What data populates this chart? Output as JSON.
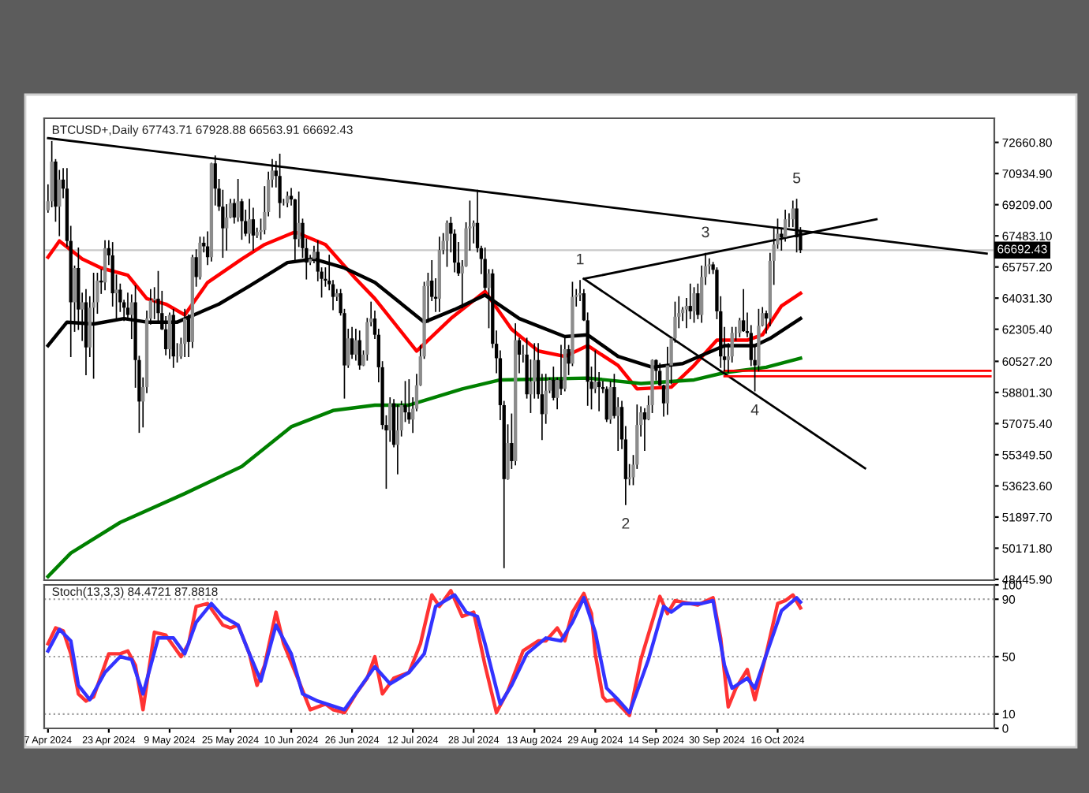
{
  "chart_data": [
    {
      "type": "candlestick",
      "title": "BTCUSD+,Daily 67743.71 67928.88 66563.91 66692.43",
      "x": [
        "2024-04-07",
        "2024-04-08",
        "2024-04-09",
        "2024-04-10",
        "2024-04-11",
        "2024-04-12",
        "2024-04-13",
        "2024-04-14",
        "2024-04-15",
        "2024-04-16",
        "2024-04-17",
        "2024-04-18",
        "2024-04-19",
        "2024-04-20",
        "2024-04-21",
        "2024-04-22",
        "2024-04-23",
        "2024-04-24",
        "2024-04-25",
        "2024-04-26",
        "2024-04-27",
        "2024-04-28",
        "2024-04-29",
        "2024-04-30",
        "2024-05-01",
        "2024-05-02",
        "2024-05-03",
        "2024-05-04",
        "2024-05-05",
        "2024-05-06",
        "2024-05-07",
        "2024-05-08",
        "2024-05-09",
        "2024-05-10",
        "2024-05-11",
        "2024-05-12",
        "2024-05-13",
        "2024-05-14",
        "2024-05-15",
        "2024-05-16",
        "2024-05-17",
        "2024-05-18",
        "2024-05-19",
        "2024-05-20",
        "2024-05-21",
        "2024-05-22",
        "2024-05-23",
        "2024-05-24",
        "2024-05-25",
        "2024-05-26",
        "2024-05-27",
        "2024-05-28",
        "2024-05-29",
        "2024-05-30",
        "2024-05-31",
        "2024-06-01",
        "2024-06-02",
        "2024-06-03",
        "2024-06-04",
        "2024-06-05",
        "2024-06-06",
        "2024-06-07",
        "2024-06-08",
        "2024-06-09",
        "2024-06-10",
        "2024-06-11",
        "2024-06-12",
        "2024-06-13",
        "2024-06-14",
        "2024-06-15",
        "2024-06-16",
        "2024-06-17",
        "2024-06-18",
        "2024-06-19",
        "2024-06-20",
        "2024-06-21",
        "2024-06-22",
        "2024-06-23",
        "2024-06-24",
        "2024-06-25",
        "2024-06-26",
        "2024-06-27",
        "2024-06-28",
        "2024-06-29",
        "2024-06-30",
        "2024-07-01",
        "2024-07-02",
        "2024-07-03",
        "2024-07-04",
        "2024-07-05",
        "2024-07-06",
        "2024-07-07",
        "2024-07-08",
        "2024-07-09",
        "2024-07-10",
        "2024-07-11",
        "2024-07-12",
        "2024-07-13",
        "2024-07-14",
        "2024-07-15",
        "2024-07-16",
        "2024-07-17",
        "2024-07-18",
        "2024-07-19",
        "2024-07-20",
        "2024-07-21",
        "2024-07-22",
        "2024-07-23",
        "2024-07-24",
        "2024-07-25",
        "2024-07-26",
        "2024-07-27",
        "2024-07-28",
        "2024-07-29",
        "2024-07-30",
        "2024-07-31",
        "2024-08-01",
        "2024-08-02",
        "2024-08-03",
        "2024-08-04",
        "2024-08-05",
        "2024-08-06",
        "2024-08-07",
        "2024-08-08",
        "2024-08-09",
        "2024-08-10",
        "2024-08-11",
        "2024-08-12",
        "2024-08-13",
        "2024-08-14",
        "2024-08-15",
        "2024-08-16",
        "2024-08-17",
        "2024-08-18",
        "2024-08-19",
        "2024-08-20",
        "2024-08-21",
        "2024-08-22",
        "2024-08-23",
        "2024-08-24",
        "2024-08-25",
        "2024-08-26",
        "2024-08-27",
        "2024-08-28",
        "2024-08-29",
        "2024-08-30",
        "2024-08-31",
        "2024-09-01",
        "2024-09-02",
        "2024-09-03",
        "2024-09-04",
        "2024-09-05",
        "2024-09-06",
        "2024-09-07",
        "2024-09-08",
        "2024-09-09",
        "2024-09-10",
        "2024-09-11",
        "2024-09-12",
        "2024-09-13",
        "2024-09-14",
        "2024-09-15",
        "2024-09-16",
        "2024-09-17",
        "2024-09-18",
        "2024-09-19",
        "2024-09-20",
        "2024-09-21",
        "2024-09-22",
        "2024-09-23",
        "2024-09-24",
        "2024-09-25",
        "2024-09-26",
        "2024-09-27",
        "2024-09-28",
        "2024-09-29",
        "2024-09-30",
        "2024-10-01",
        "2024-10-02",
        "2024-10-03",
        "2024-10-04",
        "2024-10-05",
        "2024-10-06",
        "2024-10-07",
        "2024-10-08",
        "2024-10-09",
        "2024-10-10",
        "2024-10-11",
        "2024-10-12",
        "2024-10-13",
        "2024-10-14",
        "2024-10-15",
        "2024-10-16",
        "2024-10-17",
        "2024-10-18",
        "2024-10-19",
        "2024-10-20",
        "2024-10-21",
        "2024-10-22"
      ],
      "ohlc": [
        [
          68900,
          70300,
          68800,
          69400
        ],
        [
          69400,
          72700,
          69100,
          71600
        ],
        [
          71600,
          71700,
          68300,
          69100
        ],
        [
          69100,
          71100,
          67500,
          70600
        ],
        [
          70600,
          71200,
          69600,
          70100
        ],
        [
          70100,
          71200,
          66900,
          67200
        ],
        [
          67200,
          68000,
          60800,
          63800
        ],
        [
          63800,
          65800,
          62200,
          65700
        ],
        [
          65700,
          66800,
          62300,
          63400
        ],
        [
          63400,
          64300,
          61700,
          63800
        ],
        [
          63800,
          64500,
          59800,
          61300
        ],
        [
          61300,
          64100,
          60800,
          63500
        ],
        [
          63500,
          65400,
          59600,
          63800
        ],
        [
          63800,
          65400,
          63200,
          65000
        ],
        [
          65000,
          65600,
          64300,
          64900
        ],
        [
          64900,
          67200,
          64500,
          66800
        ],
        [
          66800,
          67200,
          65900,
          66400
        ],
        [
          66400,
          67100,
          63600,
          64300
        ],
        [
          64300,
          65300,
          62800,
          64500
        ],
        [
          64500,
          64800,
          63300,
          63800
        ],
        [
          63800,
          63900,
          62800,
          63500
        ],
        [
          63500,
          64300,
          62900,
          63100
        ],
        [
          63100,
          64200,
          61800,
          63800
        ],
        [
          63800,
          64700,
          59100,
          60600
        ],
        [
          60600,
          60800,
          56600,
          58300
        ],
        [
          58300,
          59600,
          56900,
          59100
        ],
        [
          59100,
          63300,
          58800,
          62900
        ],
        [
          62900,
          64500,
          62600,
          63900
        ],
        [
          63900,
          64600,
          62900,
          64000
        ],
        [
          64000,
          65500,
          62700,
          63200
        ],
        [
          63200,
          64400,
          62300,
          62300
        ],
        [
          62300,
          63000,
          60900,
          61200
        ],
        [
          61200,
          63200,
          60700,
          63100
        ],
        [
          63100,
          63400,
          60200,
          60800
        ],
        [
          60800,
          61500,
          60500,
          60800
        ],
        [
          60800,
          61800,
          60700,
          61500
        ],
        [
          61500,
          63400,
          60800,
          62900
        ],
        [
          62900,
          63100,
          60800,
          61600
        ],
        [
          61600,
          66400,
          61300,
          66300
        ],
        [
          66300,
          66700,
          64700,
          65200
        ],
        [
          65200,
          67400,
          65100,
          67100
        ],
        [
          67100,
          67400,
          66600,
          66900
        ],
        [
          66900,
          67700,
          65900,
          66300
        ],
        [
          66300,
          71500,
          66100,
          71500
        ],
        [
          71500,
          71900,
          69200,
          70100
        ],
        [
          70100,
          70600,
          68900,
          69100
        ],
        [
          69100,
          70000,
          66300,
          67900
        ],
        [
          67900,
          69200,
          66700,
          68500
        ],
        [
          68500,
          69500,
          68500,
          69300
        ],
        [
          69300,
          69500,
          68200,
          68500
        ],
        [
          68500,
          70600,
          68300,
          69400
        ],
        [
          69400,
          69500,
          67300,
          68300
        ],
        [
          68300,
          68900,
          67500,
          67600
        ],
        [
          67600,
          69500,
          67100,
          68400
        ],
        [
          68400,
          69000,
          66700,
          67500
        ],
        [
          67500,
          67900,
          67400,
          67700
        ],
        [
          67700,
          68400,
          67300,
          67800
        ],
        [
          67800,
          70200,
          67600,
          68800
        ],
        [
          68800,
          71000,
          68600,
          70600
        ],
        [
          70600,
          71700,
          70200,
          71100
        ],
        [
          71100,
          71600,
          70200,
          70800
        ],
        [
          70800,
          72000,
          68500,
          69300
        ],
        [
          69300,
          69500,
          69200,
          69300
        ],
        [
          69300,
          69900,
          69100,
          69700
        ],
        [
          69700,
          70100,
          69200,
          69500
        ],
        [
          69500,
          69500,
          66100,
          67300
        ],
        [
          67300,
          69900,
          66900,
          68200
        ],
        [
          68200,
          68400,
          66300,
          66800
        ],
        [
          66800,
          67300,
          65100,
          66000
        ],
        [
          66000,
          66400,
          65900,
          66200
        ],
        [
          66200,
          66900,
          66000,
          66600
        ],
        [
          66600,
          67200,
          65000,
          65500
        ],
        [
          65500,
          65700,
          64100,
          65100
        ],
        [
          65100,
          65700,
          64700,
          65000
        ],
        [
          65000,
          66400,
          64500,
          64800
        ],
        [
          64800,
          65000,
          63400,
          64100
        ],
        [
          64100,
          64500,
          63900,
          64300
        ],
        [
          64300,
          64500,
          63100,
          63200
        ],
        [
          63200,
          63400,
          58500,
          60300
        ],
        [
          60300,
          62300,
          60200,
          61800
        ],
        [
          61800,
          62400,
          60700,
          60900
        ],
        [
          60900,
          62300,
          60600,
          61700
        ],
        [
          61700,
          62200,
          60100,
          60300
        ],
        [
          60300,
          61100,
          60300,
          60900
        ],
        [
          60900,
          62900,
          60600,
          62700
        ],
        [
          62700,
          63800,
          62500,
          62900
        ],
        [
          62900,
          63300,
          61800,
          62000
        ],
        [
          62000,
          62300,
          59400,
          60200
        ],
        [
          60200,
          60500,
          56800,
          57000
        ],
        [
          57000,
          57500,
          53500,
          56700
        ],
        [
          56700,
          58500,
          56100,
          58200
        ],
        [
          58200,
          58400,
          55800,
          55900
        ],
        [
          55900,
          58100,
          54300,
          56700
        ],
        [
          56700,
          58300,
          56400,
          58100
        ],
        [
          58100,
          59400,
          57200,
          57700
        ],
        [
          57700,
          59500,
          57100,
          57300
        ],
        [
          57300,
          58500,
          56600,
          57900
        ],
        [
          57900,
          59800,
          57800,
          59200
        ],
        [
          59200,
          61400,
          59200,
          60800
        ],
        [
          60800,
          64900,
          60700,
          64700
        ],
        [
          64700,
          65400,
          62700,
          65000
        ],
        [
          65000,
          66100,
          63900,
          64100
        ],
        [
          64100,
          65100,
          63300,
          64000
        ],
        [
          64000,
          67400,
          63300,
          66700
        ],
        [
          66700,
          67600,
          66500,
          67200
        ],
        [
          67200,
          68300,
          65800,
          68200
        ],
        [
          68200,
          68500,
          66600,
          67600
        ],
        [
          67600,
          67800,
          65500,
          66000
        ],
        [
          66000,
          67100,
          65300,
          65400
        ],
        [
          65400,
          66100,
          63500,
          65800
        ],
        [
          65800,
          68200,
          65800,
          67900
        ],
        [
          67900,
          69400,
          66700,
          68000
        ],
        [
          68000,
          68300,
          67100,
          68200
        ],
        [
          68200,
          70000,
          66600,
          66800
        ],
        [
          66800,
          66900,
          65400,
          66200
        ],
        [
          66200,
          66800,
          64500,
          64600
        ],
        [
          64600,
          65600,
          62400,
          65400
        ],
        [
          65400,
          65600,
          61300,
          61500
        ],
        [
          61500,
          62200,
          59900,
          60700
        ],
        [
          60700,
          61100,
          57300,
          58100
        ],
        [
          58100,
          58300,
          49100,
          54000
        ],
        [
          54000,
          57000,
          54000,
          56000
        ],
        [
          56000,
          57600,
          54600,
          55000
        ],
        [
          55000,
          62600,
          54800,
          61700
        ],
        [
          61700,
          61800,
          59900,
          60900
        ],
        [
          60900,
          61400,
          60500,
          60900
        ],
        [
          60900,
          61800,
          58500,
          58700
        ],
        [
          58700,
          60600,
          57700,
          59400
        ],
        [
          59400,
          61500,
          58500,
          60600
        ],
        [
          60600,
          61500,
          58500,
          58700
        ],
        [
          58700,
          59800,
          56200,
          57600
        ],
        [
          57600,
          59800,
          57100,
          58900
        ],
        [
          58900,
          59600,
          58800,
          59500
        ],
        [
          59500,
          60200,
          58400,
          58500
        ],
        [
          58500,
          59600,
          57900,
          59500
        ],
        [
          59500,
          61400,
          58700,
          59000
        ],
        [
          59000,
          61800,
          58900,
          61200
        ],
        [
          61200,
          61400,
          59800,
          60400
        ],
        [
          60400,
          64900,
          60300,
          64100
        ],
        [
          64100,
          64500,
          63600,
          64200
        ],
        [
          64200,
          65000,
          63900,
          64300
        ],
        [
          64300,
          64500,
          62800,
          62800
        ],
        [
          62800,
          63200,
          58100,
          59400
        ],
        [
          59400,
          60200,
          57900,
          59000
        ],
        [
          59000,
          61100,
          58800,
          59400
        ],
        [
          59400,
          59900,
          57800,
          59100
        ],
        [
          59100,
          59400,
          58800,
          59000
        ],
        [
          59000,
          59100,
          57200,
          57300
        ],
        [
          57300,
          59400,
          57100,
          59100
        ],
        [
          59100,
          59800,
          57400,
          57500
        ],
        [
          57500,
          58500,
          55600,
          58000
        ],
        [
          58000,
          58300,
          55700,
          56200
        ],
        [
          56200,
          56900,
          52600,
          54000
        ],
        [
          54000,
          54800,
          53700,
          54100
        ],
        [
          54100,
          55300,
          53700,
          54800
        ],
        [
          54800,
          58100,
          54600,
          57000
        ],
        [
          57000,
          58000,
          56400,
          57700
        ],
        [
          57700,
          57900,
          55600,
          57300
        ],
        [
          57300,
          58600,
          57300,
          58100
        ],
        [
          58100,
          60600,
          57700,
          60600
        ],
        [
          60600,
          60600,
          59500,
          60000
        ],
        [
          60000,
          60400,
          59200,
          59200
        ],
        [
          59200,
          59200,
          57500,
          58200
        ],
        [
          58200,
          61300,
          57600,
          60300
        ],
        [
          60300,
          61800,
          59300,
          61800
        ],
        [
          61800,
          63800,
          61600,
          63000
        ],
        [
          63000,
          64100,
          62400,
          63200
        ],
        [
          63200,
          63500,
          62800,
          63400
        ],
        [
          63400,
          64000,
          62400,
          63600
        ],
        [
          63600,
          64800,
          62900,
          63300
        ],
        [
          63300,
          64600,
          62700,
          64300
        ],
        [
          64300,
          64800,
          62900,
          63100
        ],
        [
          63100,
          65800,
          62700,
          65200
        ],
        [
          65200,
          66500,
          64800,
          65800
        ],
        [
          65800,
          66200,
          65400,
          65900
        ],
        [
          65900,
          66000,
          65400,
          65600
        ],
        [
          65600,
          65700,
          62900,
          63300
        ],
        [
          63300,
          64100,
          60200,
          60800
        ],
        [
          60800,
          62400,
          60000,
          60600
        ],
        [
          60600,
          61500,
          59900,
          60800
        ],
        [
          60800,
          62400,
          60500,
          62100
        ],
        [
          62100,
          62400,
          61700,
          62100
        ],
        [
          62100,
          62900,
          61900,
          62800
        ],
        [
          62800,
          64500,
          62200,
          62200
        ],
        [
          62200,
          63200,
          61900,
          62100
        ],
        [
          62100,
          62500,
          60300,
          60600
        ],
        [
          60600,
          61300,
          58900,
          60300
        ],
        [
          60300,
          63400,
          60000,
          62500
        ],
        [
          62500,
          63500,
          62500,
          63200
        ],
        [
          63200,
          63300,
          62100,
          62900
        ],
        [
          62900,
          66500,
          62500,
          66100
        ],
        [
          66100,
          67900,
          64800,
          67000
        ],
        [
          67000,
          68400,
          66800,
          67600
        ],
        [
          67600,
          67900,
          66700,
          67400
        ],
        [
          67400,
          68900,
          67200,
          68400
        ],
        [
          68400,
          68700,
          68000,
          68400
        ],
        [
          68400,
          69400,
          68000,
          69000
        ],
        [
          69000,
          69500,
          66600,
          67400
        ],
        [
          67743.71,
          67928.88,
          66563.91,
          66692.43
        ]
      ],
      "series": [
        {
          "type": "line",
          "color": "#ff0000",
          "x": [
            "2024-04-07",
            "2024-04-10",
            "2024-04-16",
            "2024-04-21",
            "2024-04-28",
            "2024-05-03",
            "2024-05-08",
            "2024-05-13",
            "2024-05-19",
            "2024-05-28",
            "2024-06-03",
            "2024-06-11",
            "2024-06-19",
            "2024-06-27",
            "2024-07-02",
            "2024-07-13",
            "2024-07-22",
            "2024-07-31",
            "2024-08-07",
            "2024-08-14",
            "2024-08-21",
            "2024-08-27",
            "2024-09-04",
            "2024-09-09",
            "2024-09-18",
            "2024-09-24",
            "2024-09-30",
            "2024-10-08",
            "2024-10-12",
            "2024-10-17",
            "2024-10-22"
          ],
          "values": [
            66300,
            67200,
            66200,
            65700,
            65300,
            64000,
            63700,
            63100,
            64900,
            66200,
            67000,
            67700,
            67000,
            65100,
            64000,
            61100,
            62900,
            64400,
            62300,
            61100,
            60800,
            61400,
            60300,
            59000,
            59100,
            60300,
            61700,
            61700,
            62000,
            63600,
            64300
          ]
        },
        {
          "type": "line",
          "color": "#000000",
          "x": [
            "2024-04-07",
            "2024-04-12",
            "2024-04-19",
            "2024-04-27",
            "2024-05-03",
            "2024-05-11",
            "2024-05-22",
            "2024-05-30",
            "2024-06-09",
            "2024-06-16",
            "2024-06-24",
            "2024-07-02",
            "2024-07-15",
            "2024-07-23",
            "2024-07-31",
            "2024-08-09",
            "2024-08-21",
            "2024-08-27",
            "2024-09-04",
            "2024-09-13",
            "2024-09-21",
            "2024-10-02",
            "2024-10-10",
            "2024-10-14",
            "2024-10-22"
          ],
          "values": [
            61400,
            62700,
            62600,
            62900,
            62700,
            62700,
            63700,
            64700,
            66000,
            66200,
            65700,
            64900,
            62700,
            63400,
            64200,
            62900,
            61900,
            62000,
            60800,
            60200,
            60400,
            61400,
            61400,
            61800,
            62900
          ]
        },
        {
          "type": "line",
          "color": "#008000",
          "x": [
            "2024-04-07",
            "2024-04-13",
            "2024-04-26",
            "2024-05-13",
            "2024-05-28",
            "2024-06-10",
            "2024-06-21",
            "2024-07-02",
            "2024-07-11",
            "2024-07-25",
            "2024-08-04",
            "2024-08-27",
            "2024-09-10",
            "2024-09-24",
            "2024-10-02",
            "2024-10-13",
            "2024-10-22"
          ],
          "values": [
            48600,
            49900,
            51600,
            53200,
            54700,
            56900,
            57800,
            58100,
            58100,
            59000,
            59500,
            59600,
            59300,
            59500,
            59900,
            60200,
            60700
          ]
        },
        {
          "type": "line",
          "color": "#000000",
          "x": [
            "2024-04-07",
            "2024-12-10"
          ],
          "values": [
            72900,
            66500
          ]
        },
        {
          "type": "line",
          "color": "#000000",
          "x": [
            "2024-08-26",
            "2024-11-11"
          ],
          "values": [
            65100,
            68400
          ]
        },
        {
          "type": "line",
          "color": "#000000",
          "x": [
            "2024-08-26",
            "2024-11-08"
          ],
          "values": [
            65100,
            54600
          ]
        },
        {
          "type": "line",
          "color": "#ff0000",
          "x": [
            "2024-10-02",
            "2024-12-11"
          ],
          "values": [
            60000,
            60000
          ]
        },
        {
          "type": "line",
          "color": "#ff0000",
          "x": [
            "2024-10-02",
            "2024-12-11"
          ],
          "values": [
            59700,
            59700
          ]
        }
      ],
      "xlim": [
        "2024-04-06",
        "2024-12-12"
      ],
      "ylim": [
        48400,
        74000
      ],
      "yticks": [
        {
          "value": 72660.8,
          "label": "72660.80"
        },
        {
          "value": 70934.9,
          "label": "70934.90"
        },
        {
          "value": 69209.0,
          "label": "69209.00"
        },
        {
          "value": 67483.1,
          "label": "67483.10"
        },
        {
          "value": 65757.2,
          "label": "65757.20"
        },
        {
          "value": 64031.3,
          "label": "64031.30"
        },
        {
          "value": 62305.4,
          "label": "62305.40"
        },
        {
          "value": 60527.2,
          "label": "60527.20"
        },
        {
          "value": 58801.3,
          "label": "58801.30"
        },
        {
          "value": 57075.4,
          "label": "57075.40"
        },
        {
          "value": 55349.5,
          "label": "55349.50"
        },
        {
          "value": 53623.6,
          "label": "53623.60"
        },
        {
          "value": 51897.7,
          "label": "51897.70"
        },
        {
          "value": 50171.8,
          "label": "50171.80"
        },
        {
          "value": 48445.9,
          "label": "48445.90"
        }
      ],
      "ref_lines": [
        {
          "axis": "y",
          "value": 66692.43,
          "label": "66692.43",
          "color": "#c8c8c8"
        }
      ],
      "annotations": [
        {
          "text": "1",
          "x": "2024-08-25",
          "y": 65000
        },
        {
          "text": "2",
          "x": "2024-09-06",
          "y": 52600
        },
        {
          "text": "3",
          "x": "2024-09-27",
          "y": 66500
        },
        {
          "text": "4",
          "x": "2024-10-10",
          "y": 58900
        },
        {
          "text": "5",
          "x": "2024-10-21",
          "y": 69500
        }
      ],
      "tick_labels": "y"
    },
    {
      "type": "line",
      "title": "Stoch(13,3,3) 84.4721 87.8818",
      "series": [
        {
          "color": "#ff3333",
          "x": [
            "2024-04-07",
            "2024-04-09",
            "2024-04-11",
            "2024-04-13",
            "2024-04-15",
            "2024-04-17",
            "2024-04-19",
            "2024-04-23",
            "2024-04-26",
            "2024-04-28",
            "2024-04-30",
            "2024-05-02",
            "2024-05-05",
            "2024-05-08",
            "2024-05-12",
            "2024-05-14",
            "2024-05-16",
            "2024-05-19",
            "2024-05-23",
            "2024-05-25",
            "2024-05-27",
            "2024-05-30",
            "2024-06-01",
            "2024-06-03",
            "2024-06-06",
            "2024-06-08",
            "2024-06-12",
            "2024-06-15",
            "2024-06-19",
            "2024-06-21",
            "2024-06-24",
            "2024-06-27",
            "2024-06-30",
            "2024-07-02",
            "2024-07-04",
            "2024-07-07",
            "2024-07-11",
            "2024-07-14",
            "2024-07-17",
            "2024-07-19",
            "2024-07-22",
            "2024-07-25",
            "2024-07-28",
            "2024-07-31",
            "2024-08-03",
            "2024-08-06",
            "2024-08-10",
            "2024-08-14",
            "2024-08-16",
            "2024-08-19",
            "2024-08-21",
            "2024-08-23",
            "2024-08-26",
            "2024-08-28",
            "2024-08-29",
            "2024-08-31",
            "2024-09-01",
            "2024-09-03",
            "2024-09-07",
            "2024-09-10",
            "2024-09-15",
            "2024-09-17",
            "2024-09-19",
            "2024-09-21",
            "2024-09-25",
            "2024-09-29",
            "2024-10-01",
            "2024-10-03",
            "2024-10-05",
            "2024-10-08",
            "2024-10-10",
            "2024-10-13",
            "2024-10-16",
            "2024-10-18",
            "2024-10-20",
            "2024-10-22"
          ],
          "values": [
            59,
            70,
            68,
            52,
            24,
            19,
            22,
            52,
            52,
            54,
            44,
            13,
            67,
            65,
            50,
            59,
            85,
            87,
            72,
            70,
            72,
            52,
            30,
            44,
            81,
            59,
            33,
            13,
            17,
            13,
            11,
            24,
            35,
            50,
            24,
            35,
            39,
            59,
            93,
            85,
            96,
            78,
            81,
            44,
            11,
            26,
            54,
            61,
            61,
            70,
            61,
            81,
            94,
            80,
            52,
            22,
            19,
            20,
            9,
            48,
            92,
            80,
            89,
            88,
            86,
            91,
            63,
            15,
            28,
            41,
            20,
            52,
            87,
            89,
            93,
            84
          ]
        },
        {
          "color": "#3333ff",
          "x": [
            "2024-04-07",
            "2024-04-10",
            "2024-04-13",
            "2024-04-15",
            "2024-04-18",
            "2024-04-22",
            "2024-04-26",
            "2024-04-29",
            "2024-05-02",
            "2024-05-06",
            "2024-05-10",
            "2024-05-13",
            "2024-05-16",
            "2024-05-20",
            "2024-05-23",
            "2024-05-27",
            "2024-05-30",
            "2024-06-02",
            "2024-06-06",
            "2024-06-10",
            "2024-06-13",
            "2024-06-17",
            "2024-06-24",
            "2024-06-28",
            "2024-07-02",
            "2024-07-06",
            "2024-07-11",
            "2024-07-15",
            "2024-07-18",
            "2024-07-23",
            "2024-07-26",
            "2024-07-29",
            "2024-07-31",
            "2024-08-04",
            "2024-08-07",
            "2024-08-11",
            "2024-08-16",
            "2024-08-20",
            "2024-08-23",
            "2024-08-26",
            "2024-08-29",
            "2024-09-01",
            "2024-09-04",
            "2024-09-07",
            "2024-09-12",
            "2024-09-16",
            "2024-09-18",
            "2024-09-21",
            "2024-09-26",
            "2024-09-29",
            "2024-10-02",
            "2024-10-04",
            "2024-10-08",
            "2024-10-10",
            "2024-10-14",
            "2024-10-17",
            "2024-10-21",
            "2024-10-22"
          ],
          "values": [
            54,
            69,
            61,
            30,
            20,
            39,
            50,
            48,
            24,
            63,
            63,
            52,
            74,
            87,
            78,
            72,
            52,
            33,
            72,
            52,
            24,
            19,
            13,
            28,
            43,
            31,
            39,
            52,
            85,
            93,
            81,
            78,
            59,
            17,
            30,
            52,
            63,
            61,
            74,
            91,
            67,
            28,
            20,
            11,
            48,
            85,
            81,
            87,
            87,
            89,
            44,
            28,
            35,
            28,
            59,
            82,
            91,
            88
          ]
        }
      ],
      "xlim": [
        "2024-04-06",
        "2024-12-12"
      ],
      "xticks": [
        {
          "value": "2024-04-07",
          "label": "7 Apr 2024"
        },
        {
          "value": "2024-04-23",
          "label": "23 Apr 2024"
        },
        {
          "value": "2024-05-09",
          "label": "9 May 2024"
        },
        {
          "value": "2024-05-25",
          "label": "25 May 2024"
        },
        {
          "value": "2024-06-10",
          "label": "10 Jun 2024"
        },
        {
          "value": "2024-06-26",
          "label": "26 Jun 2024"
        },
        {
          "value": "2024-07-12",
          "label": "12 Jul 2024"
        },
        {
          "value": "2024-07-28",
          "label": "28 Jul 2024"
        },
        {
          "value": "2024-08-13",
          "label": "13 Aug 2024"
        },
        {
          "value": "2024-08-29",
          "label": "29 Aug 2024"
        },
        {
          "value": "2024-09-14",
          "label": "14 Sep 2024"
        },
        {
          "value": "2024-09-30",
          "label": "30 Sep 2024"
        },
        {
          "value": "2024-10-16",
          "label": "16 Oct 2024"
        }
      ],
      "ylim": [
        0,
        100
      ],
      "yticks": [
        100,
        90,
        50,
        10,
        0
      ],
      "ref_lines": [
        {
          "axis": "y",
          "value": 90,
          "color": "#a0a0a0",
          "line_style": "dotted"
        },
        {
          "axis": "y",
          "value": 50,
          "color": "#a0a0a0",
          "line_style": "dotted"
        },
        {
          "axis": "y",
          "value": 10,
          "color": "#a0a0a0",
          "line_style": "dotted"
        }
      ]
    }
  ]
}
